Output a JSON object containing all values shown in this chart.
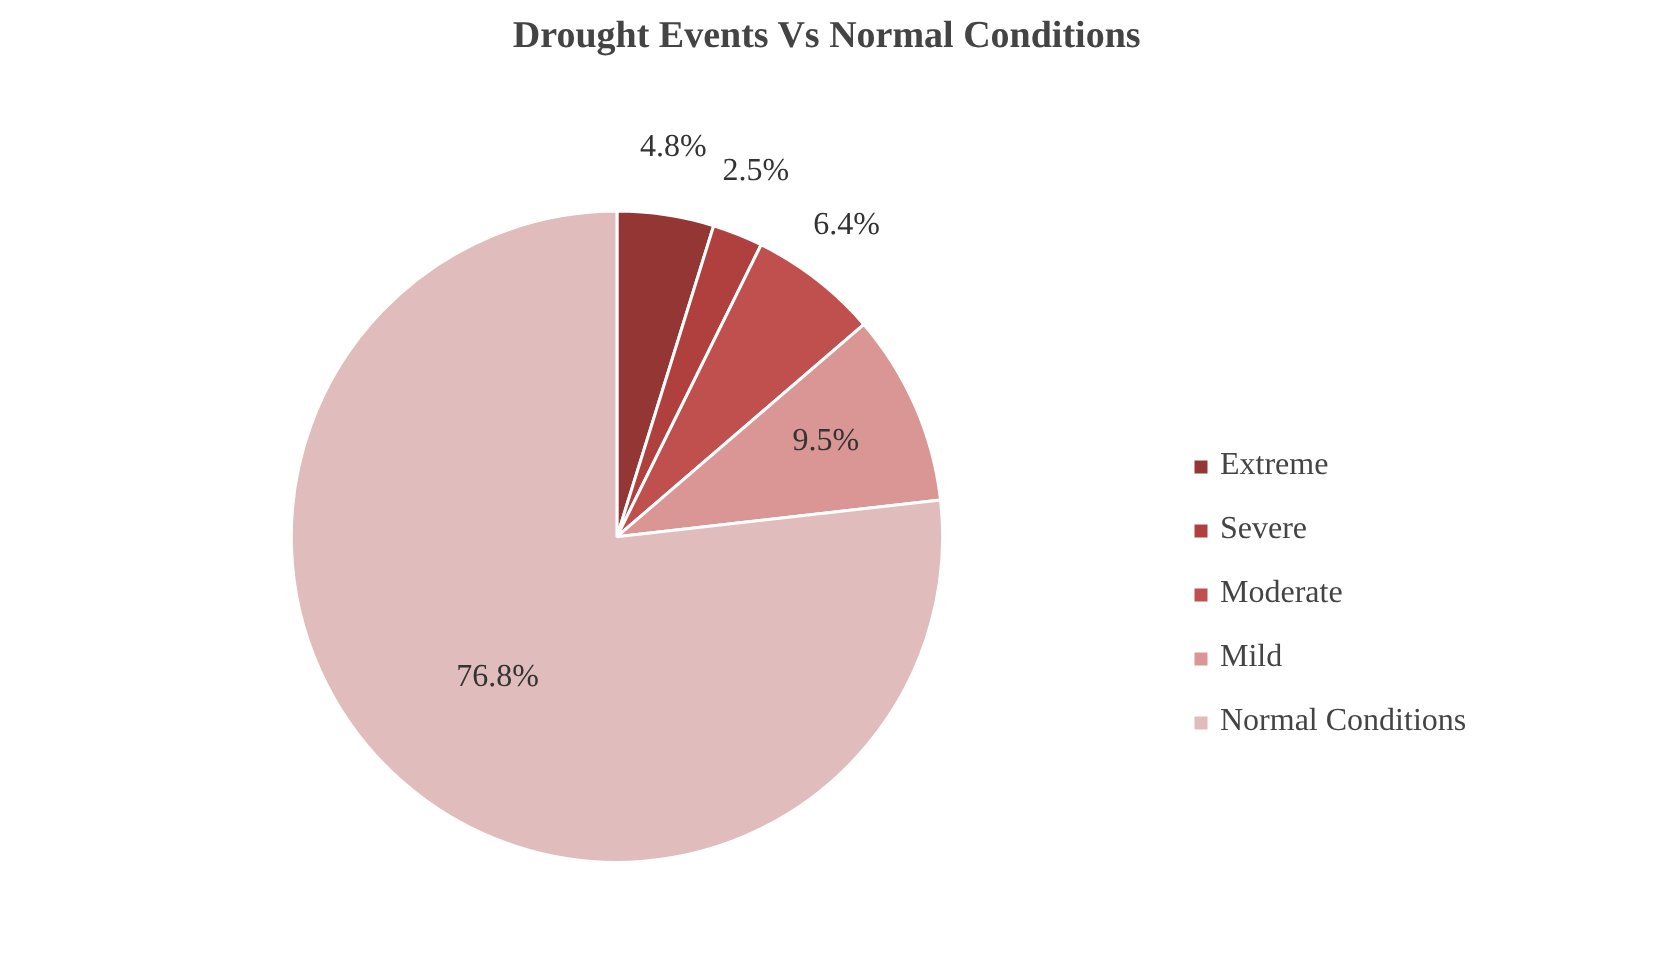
{
  "chart_data": {
    "type": "pie",
    "title": "Drought Events Vs Normal Conditions",
    "categories": [
      "Extreme",
      "Severe",
      "Moderate",
      "Mild",
      "Normal Conditions"
    ],
    "values": [
      4.8,
      2.5,
      6.4,
      9.5,
      76.8
    ],
    "colors": [
      "#943634",
      "#b0403d",
      "#c0504d",
      "#d99694",
      "#e0bcbc"
    ],
    "value_labels": [
      "4.8%",
      "2.5%",
      "6.4%",
      "9.5%",
      "76.8%"
    ],
    "legend": "right"
  }
}
